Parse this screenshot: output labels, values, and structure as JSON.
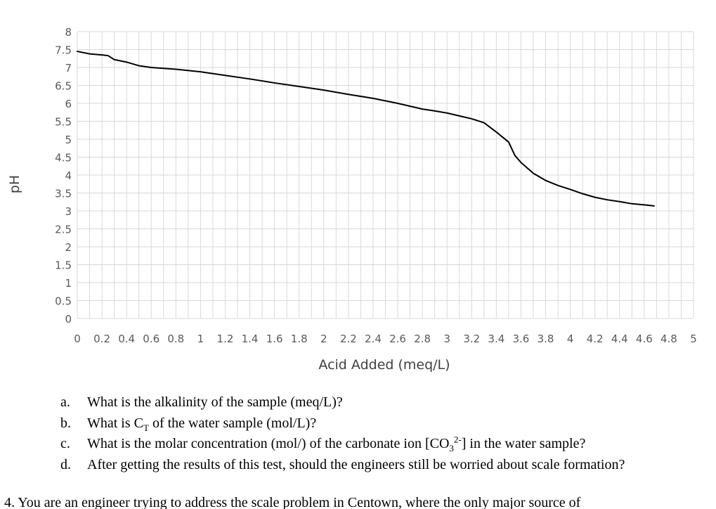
{
  "chart_data": {
    "type": "line",
    "title": "",
    "xlabel": "Acid Added (meq/L)",
    "ylabel": "pH",
    "xlim": [
      0,
      5
    ],
    "ylim": [
      0,
      8
    ],
    "xticks": [
      "0",
      "0.2",
      "0.4",
      "0.6",
      "0.8",
      "1",
      "1.2",
      "1.4",
      "1.6",
      "1.8",
      "2",
      "2.2",
      "2.4",
      "2.6",
      "2.8",
      "3",
      "3.2",
      "3.4",
      "3.6",
      "3.8",
      "4",
      "4.2",
      "4.4",
      "4.6",
      "4.8",
      "5"
    ],
    "yticks": [
      "0",
      "0.5",
      "1",
      "1.5",
      "2",
      "2.5",
      "3",
      "3.5",
      "4",
      "4.5",
      "5",
      "5.5",
      "6",
      "6.5",
      "7",
      "7.5",
      "8"
    ],
    "grid": true,
    "series": [
      {
        "name": "",
        "color": "#000000",
        "x": [
          0,
          0.1,
          0.2,
          0.25,
          0.3,
          0.4,
          0.5,
          0.6,
          0.8,
          1.0,
          1.2,
          1.4,
          1.6,
          1.8,
          2.0,
          2.2,
          2.4,
          2.6,
          2.8,
          2.9,
          3.0,
          3.1,
          3.2,
          3.3,
          3.4,
          3.5,
          3.55,
          3.6,
          3.7,
          3.8,
          3.9,
          4.0,
          4.1,
          4.2,
          4.3,
          4.4,
          4.5,
          4.6,
          4.68
        ],
        "y": [
          7.45,
          7.38,
          7.35,
          7.33,
          7.22,
          7.15,
          7.05,
          7.0,
          6.95,
          6.88,
          6.78,
          6.68,
          6.57,
          6.47,
          6.37,
          6.25,
          6.14,
          6.0,
          5.84,
          5.79,
          5.73,
          5.65,
          5.57,
          5.46,
          5.2,
          4.92,
          4.55,
          4.35,
          4.05,
          3.85,
          3.71,
          3.6,
          3.48,
          3.38,
          3.31,
          3.26,
          3.2,
          3.17,
          3.14
        ]
      }
    ]
  },
  "questions": [
    {
      "letter": "a.",
      "text": "What is the alkalinity of the sample (meq/L)?"
    },
    {
      "letter": "b.",
      "text_before": "What is C",
      "sub": "T",
      "text_after": " of the water sample (mol/L)?"
    },
    {
      "letter": "c.",
      "text_before": "What is the molar concentration (mol/) of the carbonate ion [CO",
      "sub": "3",
      "sup": "2-",
      "text_after": "] in the water sample?"
    },
    {
      "letter": "d.",
      "text": "After getting the results of this test, should the engineers still be worried about scale formation?"
    }
  ],
  "cutoff_text": "4.   You are an engineer trying to address the scale problem in Centown, where the only major source of"
}
